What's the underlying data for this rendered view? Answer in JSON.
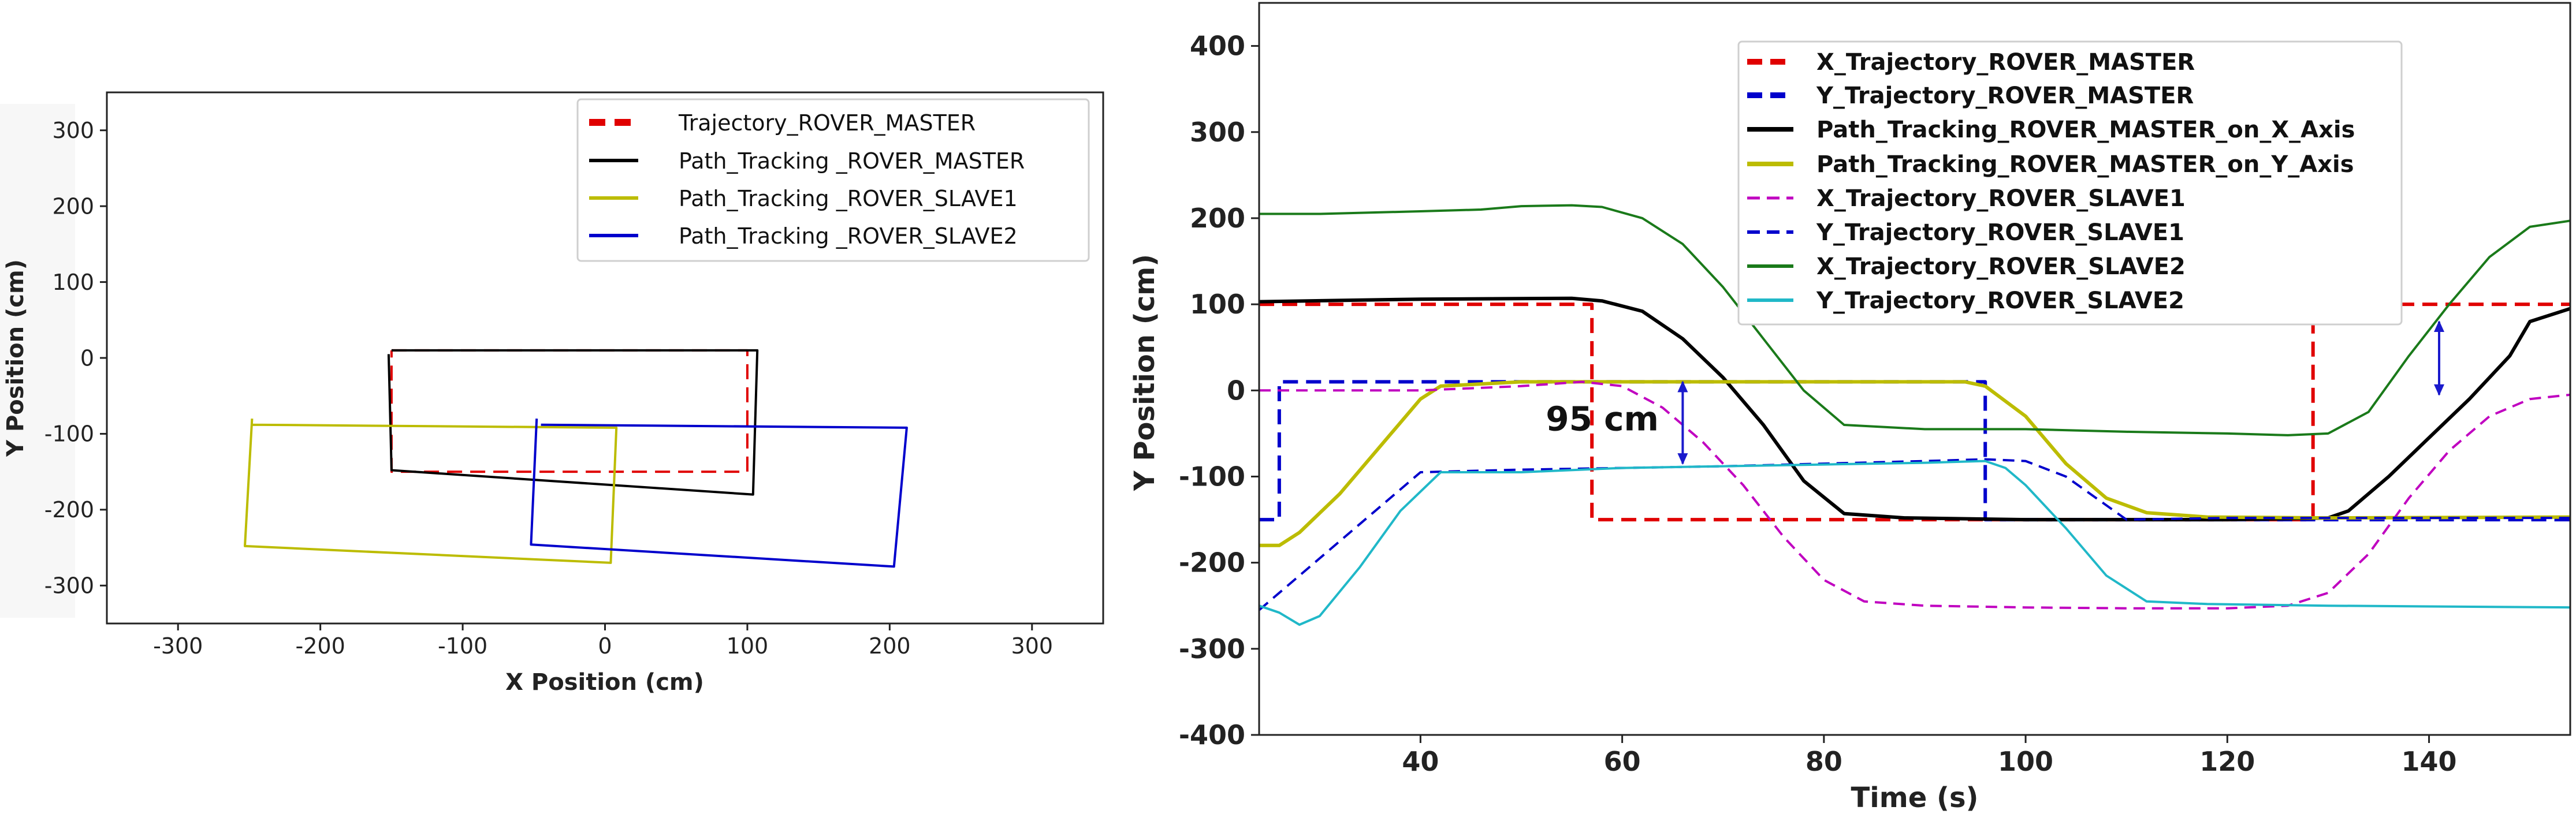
{
  "chart_data": [
    {
      "type": "line",
      "title": "",
      "xlabel": "X Position (cm)",
      "ylabel": "Y Position (cm)",
      "xlim": [
        -350,
        350
      ],
      "ylim": [
        -350,
        350
      ],
      "xticks": [
        -300,
        -200,
        -100,
        0,
        100,
        200,
        300
      ],
      "yticks": [
        300,
        200,
        100,
        0,
        -100,
        -200,
        -300
      ],
      "grid": false,
      "legend_position": "top-right",
      "series": [
        {
          "name": "Trajectory_ROVER_MASTER",
          "color": "#e00000",
          "dash": "dashed",
          "x": [
            -150,
            100,
            100,
            -150,
            -150
          ],
          "y": [
            10,
            10,
            -150,
            -150,
            10
          ]
        },
        {
          "name": "Path_Tracking _ROVER_MASTER",
          "color": "#000000",
          "dash": "solid",
          "x": [
            -150,
            107,
            104,
            -150,
            -152
          ],
          "y": [
            10,
            10,
            -180,
            -148,
            5
          ]
        },
        {
          "name": "Path_Tracking _ROVER_SLAVE1",
          "color": "#bcbc00",
          "dash": "solid",
          "x": [
            -248,
            8,
            4,
            -253,
            -248
          ],
          "y": [
            -88,
            -92,
            -270,
            -248,
            -80
          ]
        },
        {
          "name": "Path_Tracking _ROVER_SLAVE2",
          "color": "#0000cc",
          "dash": "solid",
          "x": [
            -45,
            212,
            203,
            -52,
            -48
          ],
          "y": [
            -88,
            -92,
            -275,
            -246,
            -80
          ]
        }
      ]
    },
    {
      "type": "line",
      "title": "",
      "xlabel": "Time (s)",
      "ylabel": "Y Position (cm)",
      "xlim": [
        24,
        154
      ],
      "ylim": [
        -400,
        450
      ],
      "xticks": [
        40,
        60,
        80,
        100,
        120,
        140
      ],
      "yticks": [
        400,
        300,
        200,
        100,
        0,
        -100,
        -200,
        -300,
        -400
      ],
      "grid": false,
      "legend_position": "top-center",
      "annotation": {
        "text": "95 cm",
        "x": 57,
        "y": -33
      },
      "arrows": [
        {
          "x": 66,
          "y_from": 10,
          "y_to": -85
        },
        {
          "x": 141,
          "y_from": 80,
          "y_to": -5
        }
      ],
      "series": [
        {
          "name": "X_Trajectory_ROVER_MASTER",
          "color": "#e00000",
          "dash": "dashed",
          "x": [
            24,
            57,
            57,
            128.5,
            128.5,
            154
          ],
          "y": [
            100,
            100,
            -150,
            -150,
            100,
            100
          ]
        },
        {
          "name": "Y_Trajectory_ROVER_MASTER",
          "color": "#0000cc",
          "dash": "dashed",
          "x": [
            24,
            26,
            26,
            96,
            96,
            154
          ],
          "y": [
            -150,
            -150,
            10,
            10,
            -150,
            -150
          ]
        },
        {
          "name": "Path_Tracking_ROVER_MASTER_on_X_Axis",
          "color": "#000000",
          "dash": "solid",
          "x": [
            24,
            40,
            55,
            58,
            62,
            66,
            70,
            74,
            78,
            82,
            88,
            100,
            120,
            130,
            132,
            136,
            140,
            144,
            148,
            150,
            154
          ],
          "y": [
            103,
            106,
            107,
            104,
            92,
            60,
            15,
            -40,
            -105,
            -143,
            -148,
            -150,
            -150,
            -148,
            -140,
            -100,
            -55,
            -10,
            40,
            80,
            95
          ]
        },
        {
          "name": "Path_Tracking_ROVER_MASTER_on_Y_Axis",
          "color": "#bcbc00",
          "dash": "solid",
          "x": [
            24,
            26,
            28,
            32,
            36,
            40,
            42,
            50,
            60,
            80,
            94,
            96,
            100,
            104,
            108,
            112,
            118,
            130,
            154
          ],
          "y": [
            -180,
            -180,
            -165,
            -120,
            -65,
            -10,
            5,
            10,
            10,
            10,
            10,
            5,
            -30,
            -85,
            -125,
            -142,
            -147,
            -148,
            -147
          ]
        },
        {
          "name": "X_Trajectory_ROVER_SLAVE1",
          "color": "#c000c0",
          "dash": "dashed",
          "x": [
            24,
            40,
            50,
            56,
            60,
            64,
            68,
            72,
            76,
            80,
            84,
            90,
            100,
            110,
            120,
            126,
            130,
            134,
            138,
            142,
            146,
            150,
            154
          ],
          "y": [
            0,
            0,
            5,
            10,
            5,
            -20,
            -60,
            -110,
            -170,
            -220,
            -245,
            -250,
            -252,
            -253,
            -253,
            -250,
            -235,
            -190,
            -125,
            -70,
            -30,
            -10,
            -5
          ]
        },
        {
          "name": "Y_Trajectory_ROVER_SLAVE1",
          "color": "#0000cc",
          "dash": "dashed",
          "x": [
            24,
            40,
            50,
            60,
            70,
            80,
            90,
            96,
            100,
            104,
            110,
            120,
            130,
            154
          ],
          "y": [
            -255,
            -95,
            -92,
            -90,
            -88,
            -85,
            -82,
            -80,
            -82,
            -100,
            -150,
            -148,
            -148,
            -148
          ]
        },
        {
          "name": "X_Trajectory_ROVER_SLAVE2",
          "color": "#1a7a1a",
          "dash": "solid",
          "x": [
            24,
            30,
            40,
            46,
            50,
            55,
            58,
            62,
            66,
            70,
            74,
            78,
            82,
            90,
            100,
            110,
            120,
            126,
            130,
            134,
            138,
            142,
            146,
            150,
            154
          ],
          "y": [
            205,
            205,
            208,
            210,
            214,
            215,
            213,
            200,
            170,
            120,
            60,
            0,
            -40,
            -45,
            -45,
            -48,
            -50,
            -52,
            -50,
            -25,
            40,
            100,
            155,
            190,
            197
          ]
        },
        {
          "name": "Y_Trajectory_ROVER_SLAVE2",
          "color": "#20b8c8",
          "dash": "solid",
          "x": [
            24,
            26,
            28,
            30,
            34,
            38,
            42,
            50,
            60,
            70,
            80,
            90,
            96,
            98,
            100,
            104,
            108,
            112,
            118,
            130,
            154
          ],
          "y": [
            -250,
            -258,
            -272,
            -262,
            -205,
            -140,
            -95,
            -95,
            -90,
            -88,
            -86,
            -84,
            -82,
            -90,
            -110,
            -160,
            -215,
            -245,
            -248,
            -250,
            -252
          ]
        }
      ]
    }
  ]
}
